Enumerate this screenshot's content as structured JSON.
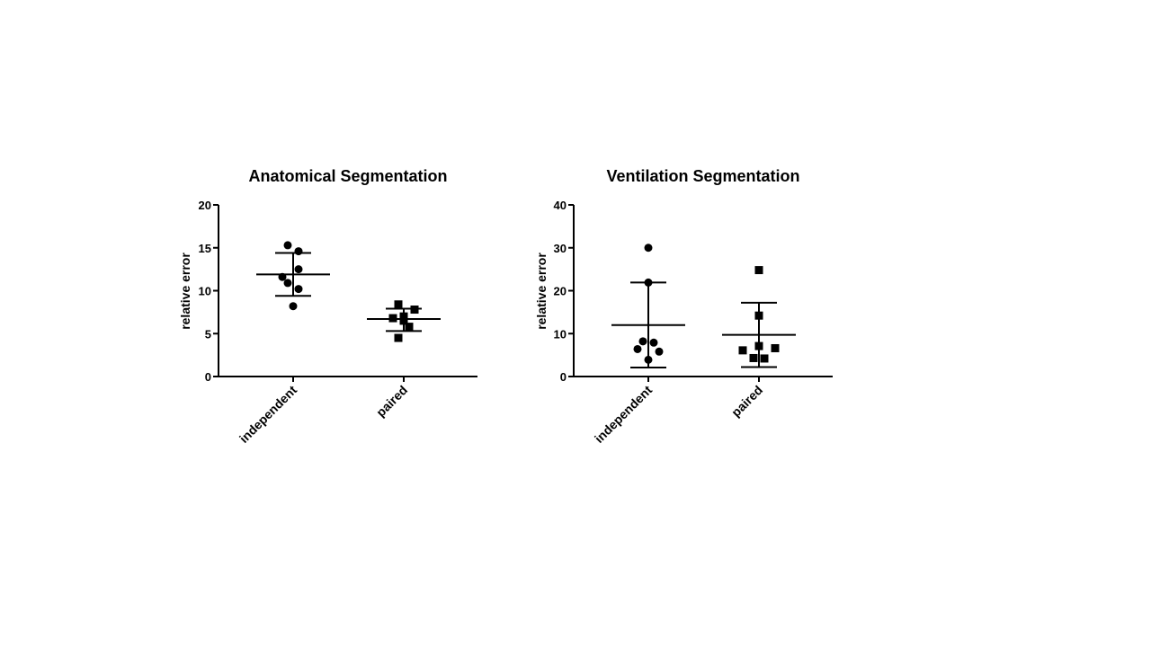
{
  "chart_data": [
    {
      "type": "scatter",
      "title": "Anatomical Segmentation",
      "ylabel": "relative error",
      "xlabel": "",
      "ylim": [
        0,
        20
      ],
      "yticks": [
        0,
        5,
        10,
        15,
        20
      ],
      "categories": [
        "independent",
        "paired"
      ],
      "series": [
        {
          "name": "independent",
          "marker": "circle",
          "values": [
            15.3,
            14.6,
            12.5,
            11.6,
            10.9,
            10.2,
            8.2
          ],
          "mean": 11.9,
          "sd_upper": 14.4,
          "sd_lower": 9.4
        },
        {
          "name": "paired",
          "marker": "square",
          "values": [
            8.4,
            7.8,
            7.0,
            6.8,
            6.5,
            5.8,
            4.5
          ],
          "mean": 6.7,
          "sd_upper": 7.9,
          "sd_lower": 5.3
        }
      ]
    },
    {
      "type": "scatter",
      "title": "Ventilation Segmentation",
      "ylabel": "relative error",
      "xlabel": "",
      "ylim": [
        0,
        40
      ],
      "yticks": [
        0,
        10,
        20,
        30,
        40
      ],
      "categories": [
        "independent",
        "paired"
      ],
      "series": [
        {
          "name": "independent",
          "marker": "circle",
          "values": [
            30.0,
            21.9,
            8.2,
            7.9,
            6.4,
            5.8,
            3.9
          ],
          "mean": 12.0,
          "sd_upper": 21.9,
          "sd_lower": 2.1
        },
        {
          "name": "paired",
          "marker": "square",
          "values": [
            24.8,
            14.2,
            7.1,
            6.6,
            6.1,
            4.3,
            4.2
          ],
          "mean": 9.7,
          "sd_upper": 17.2,
          "sd_lower": 2.2
        }
      ]
    }
  ]
}
